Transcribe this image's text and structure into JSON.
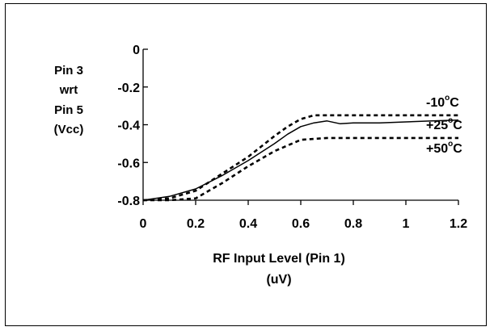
{
  "chart_data": {
    "type": "line",
    "title": "",
    "ylabel_lines": [
      "Pin 3",
      "wrt",
      "Pin 5",
      "(Vcc)"
    ],
    "xlabel_lines": [
      "RF Input Level  (Pin 1)",
      "(uV)"
    ],
    "xlim": [
      0,
      1.2
    ],
    "ylim": [
      -0.8,
      0
    ],
    "x_ticks": [
      0,
      0.2,
      0.4,
      0.6,
      0.8,
      1.0,
      1.2
    ],
    "x_tick_labels": [
      "0",
      "0.2",
      "0.4",
      "0.6",
      "0.8",
      "1",
      "1.2"
    ],
    "y_ticks": [
      0,
      -0.2,
      -0.4,
      -0.6,
      -0.8
    ],
    "y_tick_labels": [
      "0",
      "-0.2",
      "-0.4",
      "-0.6",
      "-0.8"
    ],
    "grid": false,
    "legend": "inline-right",
    "series": [
      {
        "name": "-10°C",
        "label_parts": [
          "-10",
          "o",
          "C"
        ],
        "style": "dotted",
        "x": [
          0.0,
          0.1,
          0.2,
          0.3,
          0.4,
          0.5,
          0.55,
          0.6,
          0.65,
          0.7,
          0.8,
          0.9,
          1.0,
          1.1,
          1.2
        ],
        "y": [
          -0.8,
          -0.79,
          -0.75,
          -0.66,
          -0.57,
          -0.46,
          -0.41,
          -0.37,
          -0.35,
          -0.35,
          -0.35,
          -0.35,
          -0.35,
          -0.35,
          -0.35
        ]
      },
      {
        "name": "+25°C",
        "label_parts": [
          "+25",
          "o",
          "C"
        ],
        "style": "solid",
        "x": [
          0.0,
          0.1,
          0.2,
          0.3,
          0.4,
          0.5,
          0.55,
          0.6,
          0.65,
          0.7,
          0.75,
          0.8,
          0.9,
          1.0,
          1.1,
          1.2
        ],
        "y": [
          -0.8,
          -0.78,
          -0.74,
          -0.67,
          -0.59,
          -0.5,
          -0.45,
          -0.41,
          -0.39,
          -0.38,
          -0.395,
          -0.39,
          -0.39,
          -0.385,
          -0.38,
          -0.375
        ]
      },
      {
        "name": "+50°C",
        "label_parts": [
          "+50",
          "o",
          "C"
        ],
        "style": "dotted",
        "x": [
          0.0,
          0.1,
          0.2,
          0.25,
          0.3,
          0.4,
          0.5,
          0.6,
          0.7,
          0.8,
          0.9,
          1.0,
          1.1,
          1.2
        ],
        "y": [
          -0.8,
          -0.8,
          -0.79,
          -0.75,
          -0.71,
          -0.62,
          -0.54,
          -0.48,
          -0.47,
          -0.47,
          -0.47,
          -0.47,
          -0.47,
          -0.47
        ]
      }
    ]
  }
}
